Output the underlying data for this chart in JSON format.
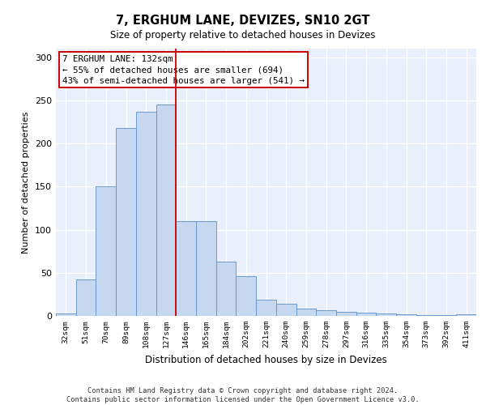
{
  "title": "7, ERGHUM LANE, DEVIZES, SN10 2GT",
  "subtitle": "Size of property relative to detached houses in Devizes",
  "xlabel": "Distribution of detached houses by size in Devizes",
  "ylabel": "Number of detached properties",
  "categories": [
    "32sqm",
    "51sqm",
    "70sqm",
    "89sqm",
    "108sqm",
    "127sqm",
    "146sqm",
    "165sqm",
    "184sqm",
    "202sqm",
    "221sqm",
    "240sqm",
    "259sqm",
    "278sqm",
    "297sqm",
    "316sqm",
    "335sqm",
    "354sqm",
    "373sqm",
    "392sqm",
    "411sqm"
  ],
  "bar_heights": [
    3,
    42,
    150,
    218,
    237,
    245,
    110,
    110,
    63,
    46,
    19,
    14,
    8,
    7,
    5,
    4,
    3,
    2,
    1,
    1,
    2
  ],
  "bar_color": "#c5d8f0",
  "bar_edge_color": "#5b8fc9",
  "vline_pos": 5.5,
  "vline_color": "#cc0000",
  "annotation_text": "7 ERGHUM LANE: 132sqm\n← 55% of detached houses are smaller (694)\n43% of semi-detached houses are larger (541) →",
  "annotation_border_color": "#cc0000",
  "ylim": [
    0,
    310
  ],
  "yticks": [
    0,
    50,
    100,
    150,
    200,
    250,
    300
  ],
  "footer_line1": "Contains HM Land Registry data © Crown copyright and database right 2024.",
  "footer_line2": "Contains public sector information licensed under the Open Government Licence v3.0.",
  "bg_color": "#eaf0fb",
  "fig_bg_color": "#ffffff"
}
